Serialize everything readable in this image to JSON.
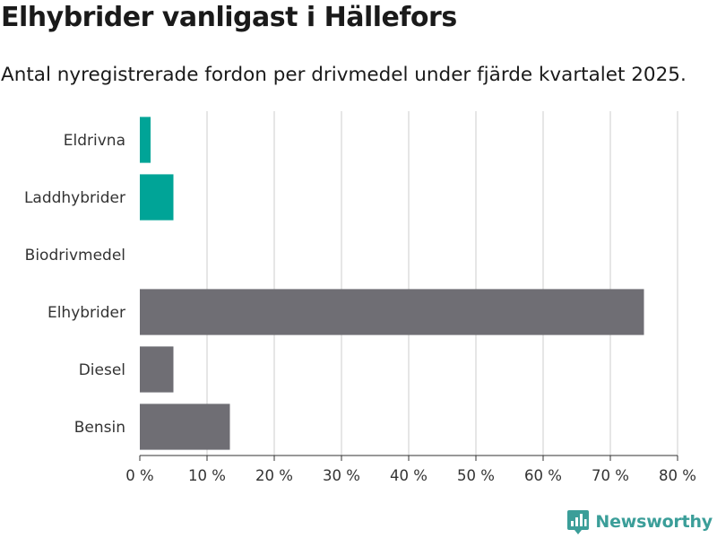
{
  "header": {
    "title": "Elhybrider vanligast i Hällefors",
    "subtitle": "Antal nyregistrerade fordon per drivmedel under fjärde kvartalet 2025."
  },
  "brand": {
    "name": "Newsworthy",
    "icon": "newsworthy-logo-icon"
  },
  "colors": {
    "highlight": "#00a497",
    "default": "#6f6e74",
    "grid": "#dddddd",
    "axis": "#333333"
  },
  "chart_data": {
    "type": "bar",
    "orientation": "horizontal",
    "title": "Elhybrider vanligast i Hällefors",
    "subtitle": "Antal nyregistrerade fordon per drivmedel under fjärde kvartalet 2025.",
    "categories": [
      "Eldrivna",
      "Laddhybrider",
      "Biodrivmedel",
      "Elhybrider",
      "Diesel",
      "Bensin"
    ],
    "values": [
      1.6,
      5,
      0,
      75,
      5,
      13.4
    ],
    "highlighted": [
      true,
      true,
      false,
      false,
      false,
      false
    ],
    "xlim": [
      0,
      80
    ],
    "xticks": [
      0,
      10,
      20,
      30,
      40,
      50,
      60,
      70,
      80
    ],
    "xtick_labels": [
      "0 %",
      "10 %",
      "20 %",
      "30 %",
      "40 %",
      "50 %",
      "60 %",
      "70 %",
      "80 %"
    ],
    "xlabel": "",
    "ylabel": "",
    "grid": true
  }
}
